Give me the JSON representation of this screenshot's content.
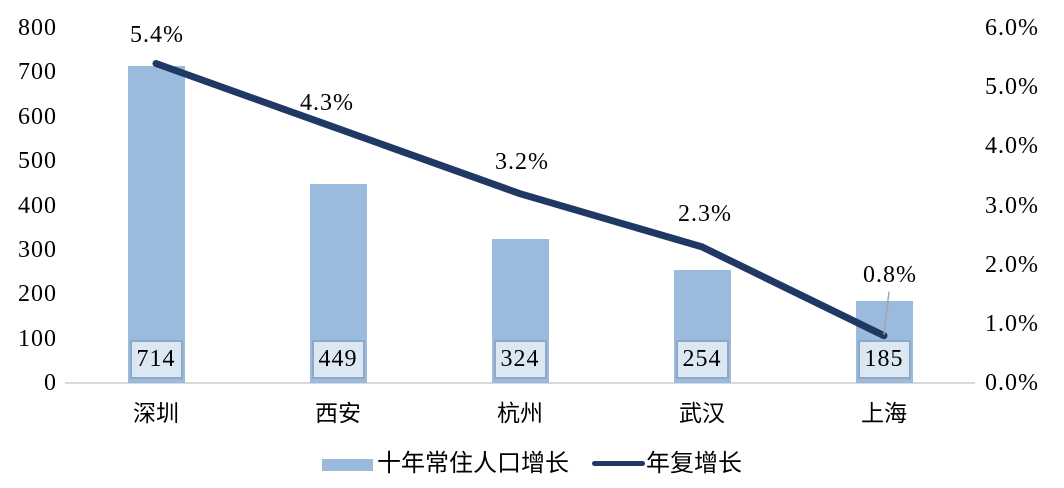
{
  "chart_data": {
    "type": "combo_bar_line",
    "title": "",
    "categories": [
      "深圳",
      "西安",
      "杭州",
      "武汉",
      "上海"
    ],
    "series": [
      {
        "name": "十年常住人口增长",
        "type": "bar",
        "axis": "left",
        "values": [
          714,
          449,
          324,
          254,
          185
        ],
        "data_labels": [
          "714",
          "449",
          "324",
          "254",
          "185"
        ]
      },
      {
        "name": "年复增长",
        "type": "line",
        "axis": "right",
        "values": [
          5.4,
          4.3,
          3.2,
          2.3,
          0.8
        ],
        "data_labels": [
          "5.4%",
          "4.3%",
          "3.2%",
          "2.3%",
          "0.8%"
        ]
      }
    ],
    "left_axis": {
      "min": 0,
      "max": 800,
      "tick_step": 100,
      "tick_labels": [
        "800",
        "700",
        "600",
        "500",
        "400",
        "300",
        "200",
        "100",
        "0"
      ]
    },
    "right_axis": {
      "min": 0,
      "max": 6,
      "tick_step": 1,
      "tick_labels": [
        "6.0%",
        "5.0%",
        "4.0%",
        "3.0%",
        "2.0%",
        "1.0%",
        "0.0%"
      ]
    },
    "legend": {
      "position": "bottom",
      "entries": [
        {
          "label": "十年常住人口增长",
          "swatch": "bar"
        },
        {
          "label": "年复增长",
          "swatch": "line"
        }
      ]
    },
    "gridlines": false,
    "colors": {
      "bar_fill": "#9BBBDE",
      "bar_label_box_fill": "#DBE8F4",
      "bar_label_box_border": "#8FA8C4",
      "line": "#1F3864",
      "baseline": "#D9D9D9",
      "leader_line": "#A6A6A6",
      "text": "#000000",
      "background": "#FFFFFF"
    }
  }
}
